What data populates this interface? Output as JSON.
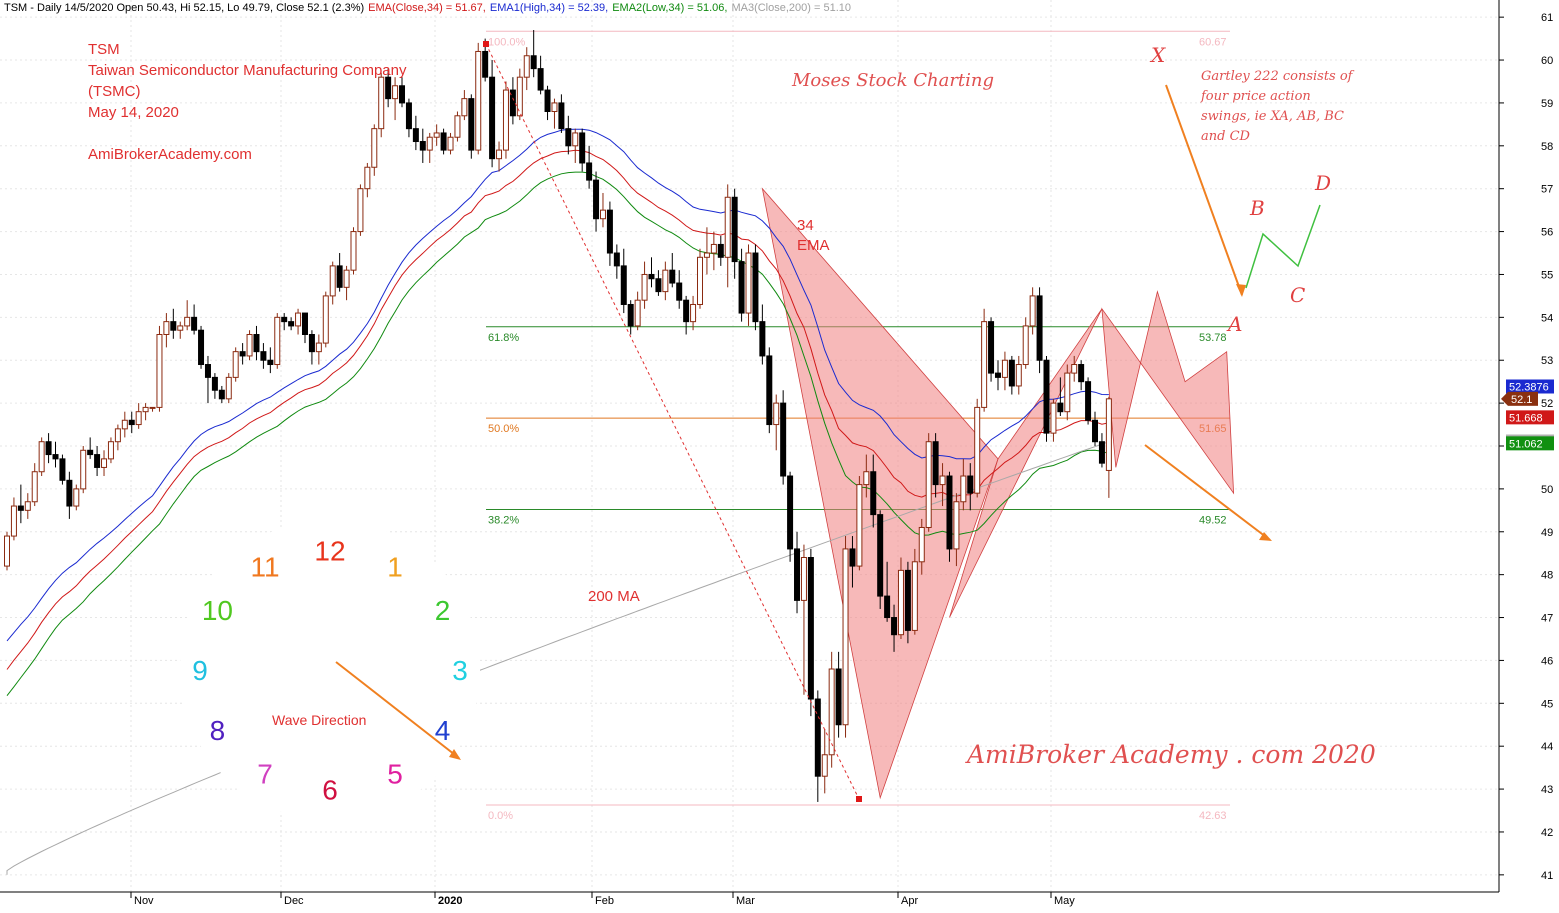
{
  "header": {
    "symbol": "TSM",
    "info": "TSM - Daily 14/5/2020 Open 50.43, Hi 52.15, Lo 49.79, Close 52.1 (2.3%)",
    "ema": "EMA(Close,34) = 51.67,",
    "ema1": "EMA1(High,34) = 52.39,",
    "ema2": "EMA2(Low,34) = 51.06,",
    "ma3": "MA3(Close,200) = 51.10"
  },
  "title_block": {
    "line1": "TSM",
    "line2": "Taiwan Semiconductor Manufacturing Company",
    "line3": "(TSMC)",
    "line4": "May 14, 2020",
    "line5": "AmiBrokerAcademy.com"
  },
  "annotations": {
    "moses": "Moses Stock Charting",
    "ema_label_1": "34",
    "ema_label_2": "EMA",
    "ma_label": "200 MA",
    "gartley_1": "Gartley 222 consists of",
    "gartley_2": "four price action",
    "gartley_3": "swings, ie XA, AB, BC",
    "gartley_4": "and CD",
    "pt_x": "X",
    "pt_a": "A",
    "pt_b": "B",
    "pt_c": "C",
    "pt_d": "D",
    "watermark": "AmiBroker Academy . com 2020"
  },
  "clock": {
    "title": "Wave Direction",
    "numbers": [
      "12",
      "1",
      "2",
      "3",
      "4",
      "5",
      "6",
      "7",
      "8",
      "9",
      "10",
      "11"
    ],
    "colors": [
      "#e8341c",
      "#f0a020",
      "#3cc830",
      "#20d0e0",
      "#2040d0",
      "#e020a0",
      "#d01040",
      "#d040c0",
      "#5020c0",
      "#20c0e0",
      "#50c820",
      "#f07820"
    ]
  },
  "fib_levels": [
    {
      "pct": "100.0%",
      "value": "60.67",
      "price": 60.67,
      "color": "#f4b8c0"
    },
    {
      "pct": "61.8%",
      "value": "53.78",
      "price": 53.78,
      "color": "#2a8a2a"
    },
    {
      "pct": "50.0%",
      "value": "51.65",
      "price": 51.65,
      "color": "#e07820"
    },
    {
      "pct": "38.2%",
      "value": "49.52",
      "price": 49.52,
      "color": "#2a8a2a"
    },
    {
      "pct": "0.0%",
      "value": "42.63",
      "price": 42.63,
      "color": "#f4b8c0"
    }
  ],
  "price_badges": [
    {
      "label": "52.3876",
      "price": 52.3876,
      "color": "#1a2ad0"
    },
    {
      "label": "52.1",
      "price": 52.1,
      "color": "#8a3010"
    },
    {
      "label": "51.668",
      "price": 51.668,
      "color": "#d01818"
    },
    {
      "label": "51.1047",
      "price": 51.1047,
      "color": "#b0b0b0"
    },
    {
      "label": "51.062",
      "price": 51.062,
      "color": "#109010"
    }
  ],
  "colors": {
    "up": "#8b2a10",
    "down": "#000000",
    "ema_high": "#1a2ad0",
    "ema_close": "#d01818",
    "ema_low": "#108a10",
    "ma200": "#a8a8a8",
    "pattern_fill": "#f08080",
    "orange_arrow": "#f08020",
    "red_text": "#e04040"
  },
  "chart_data": {
    "type": "candlestick",
    "title": "TSM - Daily 14/5/2020",
    "ylim": [
      40.6,
      61.4
    ],
    "y_ticks": [
      41,
      42,
      43,
      44,
      45,
      46,
      47,
      48,
      49,
      50,
      51,
      52,
      53,
      54,
      55,
      56,
      57,
      58,
      59,
      60,
      61
    ],
    "x_labels": [
      {
        "label": "Nov",
        "date": "2019-11-01"
      },
      {
        "label": "Dec",
        "date": "2019-12-02"
      },
      {
        "label": "2020",
        "date": "2020-01-02"
      },
      {
        "label": "Feb",
        "date": "2020-02-03"
      },
      {
        "label": "Mar",
        "date": "2020-03-02"
      },
      {
        "label": "Apr",
        "date": "2020-04-01"
      },
      {
        "label": "May",
        "date": "2020-05-01"
      }
    ],
    "last_close": 52.1,
    "ohlc": [
      [
        48.2,
        49.0,
        48.1,
        48.9
      ],
      [
        48.9,
        49.8,
        48.8,
        49.6
      ],
      [
        49.6,
        50.1,
        49.2,
        49.5
      ],
      [
        49.5,
        49.9,
        49.3,
        49.7
      ],
      [
        49.7,
        50.6,
        49.6,
        50.4
      ],
      [
        50.4,
        51.2,
        50.3,
        51.1
      ],
      [
        51.1,
        51.3,
        50.6,
        50.8
      ],
      [
        50.8,
        51.1,
        50.5,
        50.7
      ],
      [
        50.7,
        50.8,
        50.1,
        50.2
      ],
      [
        50.2,
        50.4,
        49.3,
        49.6
      ],
      [
        49.6,
        50.1,
        49.5,
        50.0
      ],
      [
        50.0,
        51.0,
        49.9,
        50.9
      ],
      [
        50.9,
        51.2,
        50.7,
        50.8
      ],
      [
        50.8,
        51.0,
        50.3,
        50.5
      ],
      [
        50.5,
        50.9,
        50.3,
        50.7
      ],
      [
        50.7,
        51.2,
        50.6,
        51.1
      ],
      [
        51.1,
        51.5,
        50.9,
        51.4
      ],
      [
        51.4,
        51.8,
        51.2,
        51.6
      ],
      [
        51.6,
        51.8,
        51.3,
        51.5
      ],
      [
        51.5,
        52.0,
        51.4,
        51.8
      ],
      [
        51.8,
        52.0,
        51.6,
        51.9
      ],
      [
        51.9,
        51.9,
        51.8,
        51.9
      ],
      [
        51.9,
        53.8,
        51.8,
        53.6
      ],
      [
        53.6,
        54.1,
        53.3,
        53.9
      ],
      [
        53.9,
        54.2,
        53.5,
        53.7
      ],
      [
        53.7,
        53.9,
        53.5,
        53.8
      ],
      [
        53.8,
        54.4,
        53.7,
        54.0
      ],
      [
        54.0,
        54.3,
        53.6,
        53.7
      ],
      [
        53.7,
        53.8,
        52.8,
        52.9
      ],
      [
        52.9,
        53.1,
        52.0,
        52.6
      ],
      [
        52.6,
        52.7,
        52.1,
        52.3
      ],
      [
        52.3,
        52.4,
        52.0,
        52.1
      ],
      [
        52.1,
        52.7,
        52.0,
        52.6
      ],
      [
        52.6,
        53.3,
        52.5,
        53.2
      ],
      [
        53.2,
        53.4,
        52.9,
        53.1
      ],
      [
        53.1,
        53.7,
        53.0,
        53.6
      ],
      [
        53.6,
        53.8,
        53.0,
        53.2
      ],
      [
        53.2,
        53.4,
        52.8,
        53.0
      ],
      [
        53.0,
        53.3,
        52.7,
        52.9
      ],
      [
        52.9,
        54.1,
        52.8,
        54.0
      ],
      [
        54.0,
        54.1,
        53.7,
        53.9
      ],
      [
        53.9,
        54.0,
        53.7,
        53.8
      ],
      [
        53.8,
        54.2,
        53.6,
        54.1
      ],
      [
        54.1,
        54.1,
        53.4,
        53.6
      ],
      [
        53.6,
        53.7,
        52.9,
        53.2
      ],
      [
        53.2,
        53.6,
        52.9,
        53.4
      ],
      [
        53.4,
        54.6,
        53.3,
        54.5
      ],
      [
        54.5,
        55.3,
        54.3,
        55.2
      ],
      [
        55.2,
        55.5,
        54.6,
        54.7
      ],
      [
        54.7,
        55.2,
        54.4,
        55.1
      ],
      [
        55.1,
        56.1,
        55.0,
        56.0
      ],
      [
        56.0,
        57.1,
        55.9,
        57.0
      ],
      [
        57.0,
        57.6,
        56.8,
        57.5
      ],
      [
        57.5,
        58.5,
        57.3,
        58.4
      ],
      [
        58.4,
        59.7,
        58.2,
        59.6
      ],
      [
        59.6,
        59.8,
        58.9,
        59.1
      ],
      [
        59.1,
        59.6,
        58.6,
        59.4
      ],
      [
        59.4,
        59.6,
        58.9,
        59.0
      ],
      [
        59.0,
        59.1,
        58.2,
        58.4
      ],
      [
        58.4,
        58.7,
        57.9,
        58.1
      ],
      [
        58.1,
        58.4,
        57.6,
        57.9
      ],
      [
        57.9,
        58.3,
        57.6,
        58.2
      ],
      [
        58.2,
        58.5,
        58.0,
        58.3
      ],
      [
        58.3,
        58.4,
        57.8,
        57.9
      ],
      [
        57.9,
        58.3,
        57.8,
        58.2
      ],
      [
        58.2,
        58.8,
        58.1,
        58.7
      ],
      [
        58.7,
        59.3,
        58.6,
        59.1
      ],
      [
        59.1,
        59.2,
        57.7,
        57.9
      ],
      [
        57.9,
        60.4,
        57.8,
        60.2
      ],
      [
        60.2,
        60.5,
        59.5,
        59.6
      ],
      [
        59.6,
        60.0,
        57.5,
        57.7
      ],
      [
        57.7,
        58.1,
        57.4,
        57.9
      ],
      [
        57.9,
        59.5,
        57.7,
        59.3
      ],
      [
        59.3,
        59.6,
        58.5,
        58.7
      ],
      [
        58.7,
        59.8,
        58.6,
        59.6
      ],
      [
        59.6,
        60.3,
        59.3,
        60.1
      ],
      [
        60.1,
        60.7,
        59.6,
        59.8
      ],
      [
        59.8,
        60.1,
        59.2,
        59.3
      ],
      [
        59.3,
        59.4,
        58.6,
        58.8
      ],
      [
        58.8,
        59.1,
        58.4,
        59.0
      ],
      [
        59.0,
        59.2,
        58.3,
        58.4
      ],
      [
        58.4,
        58.7,
        57.8,
        58.0
      ],
      [
        58.0,
        58.4,
        57.6,
        58.3
      ],
      [
        58.3,
        58.4,
        57.4,
        57.6
      ],
      [
        57.6,
        58.0,
        57.0,
        57.2
      ],
      [
        57.2,
        57.4,
        56.0,
        56.3
      ],
      [
        56.3,
        56.9,
        56.1,
        56.5
      ],
      [
        56.5,
        56.7,
        55.2,
        55.5
      ],
      [
        55.5,
        55.7,
        54.9,
        55.2
      ],
      [
        55.2,
        55.6,
        54.1,
        54.3
      ],
      [
        54.3,
        54.4,
        53.6,
        53.8
      ],
      [
        53.8,
        54.6,
        53.7,
        54.4
      ],
      [
        54.4,
        55.3,
        54.2,
        55.0
      ],
      [
        55.0,
        55.4,
        54.7,
        54.9
      ],
      [
        54.9,
        55.1,
        54.5,
        54.6
      ],
      [
        54.6,
        55.3,
        54.4,
        55.1
      ],
      [
        55.1,
        55.5,
        54.7,
        54.8
      ],
      [
        54.8,
        55.1,
        54.2,
        54.4
      ],
      [
        54.4,
        54.5,
        53.6,
        53.9
      ],
      [
        53.9,
        54.5,
        53.7,
        54.3
      ],
      [
        54.3,
        55.6,
        54.2,
        55.4
      ],
      [
        55.4,
        56.1,
        55.0,
        55.5
      ],
      [
        55.5,
        56.0,
        55.1,
        55.7
      ],
      [
        55.7,
        55.9,
        55.2,
        55.4
      ],
      [
        55.4,
        57.1,
        54.7,
        56.8
      ],
      [
        56.8,
        57.0,
        54.9,
        55.3
      ],
      [
        55.3,
        55.6,
        53.9,
        54.1
      ],
      [
        54.1,
        55.7,
        53.8,
        55.5
      ],
      [
        55.5,
        55.7,
        53.7,
        53.9
      ],
      [
        53.9,
        54.3,
        52.9,
        53.1
      ],
      [
        53.1,
        53.3,
        51.3,
        51.5
      ],
      [
        51.5,
        52.2,
        50.9,
        52.0
      ],
      [
        52.0,
        52.3,
        50.1,
        50.3
      ],
      [
        50.3,
        50.4,
        48.3,
        48.6
      ],
      [
        48.6,
        49.0,
        47.1,
        47.4
      ],
      [
        47.4,
        48.7,
        45.2,
        48.4
      ],
      [
        48.4,
        48.6,
        44.7,
        45.1
      ],
      [
        45.1,
        45.3,
        42.7,
        43.3
      ],
      [
        43.3,
        44.4,
        42.9,
        43.8
      ],
      [
        43.8,
        46.2,
        43.5,
        45.8
      ],
      [
        45.8,
        46.2,
        44.2,
        44.5
      ],
      [
        44.5,
        48.9,
        44.2,
        48.6
      ],
      [
        48.6,
        48.9,
        47.7,
        48.2
      ],
      [
        48.2,
        50.3,
        48.1,
        50.1
      ],
      [
        50.1,
        50.8,
        49.8,
        50.4
      ],
      [
        50.4,
        50.8,
        49.1,
        49.4
      ],
      [
        49.4,
        49.5,
        47.2,
        47.5
      ],
      [
        47.5,
        48.3,
        46.9,
        47.0
      ],
      [
        47.0,
        47.3,
        46.2,
        46.6
      ],
      [
        46.6,
        48.4,
        46.5,
        48.1
      ],
      [
        48.1,
        48.3,
        46.4,
        46.7
      ],
      [
        46.7,
        48.6,
        46.6,
        48.3
      ],
      [
        48.3,
        49.3,
        48.0,
        49.1
      ],
      [
        49.1,
        51.3,
        49.0,
        51.1
      ],
      [
        51.1,
        51.3,
        49.8,
        50.1
      ],
      [
        50.1,
        50.6,
        49.6,
        50.3
      ],
      [
        50.3,
        50.4,
        48.3,
        48.6
      ],
      [
        48.6,
        49.9,
        48.2,
        49.7
      ],
      [
        49.7,
        50.7,
        49.5,
        50.3
      ],
      [
        50.3,
        50.6,
        49.5,
        49.9
      ],
      [
        49.9,
        52.1,
        49.8,
        51.9
      ],
      [
        51.9,
        54.2,
        51.8,
        53.9
      ],
      [
        53.9,
        54.0,
        52.5,
        52.7
      ],
      [
        52.7,
        53.0,
        52.3,
        52.6
      ],
      [
        52.6,
        53.2,
        52.3,
        53.0
      ],
      [
        53.0,
        53.1,
        52.2,
        52.4
      ],
      [
        52.4,
        53.1,
        52.2,
        52.9
      ],
      [
        52.9,
        54.0,
        52.8,
        53.8
      ],
      [
        53.8,
        54.7,
        53.6,
        54.5
      ],
      [
        54.5,
        54.7,
        52.7,
        53.0
      ],
      [
        53.0,
        53.1,
        51.1,
        51.3
      ],
      [
        51.3,
        52.1,
        51.1,
        52.0
      ],
      [
        52.0,
        52.6,
        51.7,
        51.8
      ],
      [
        51.8,
        52.9,
        51.6,
        52.7
      ],
      [
        52.7,
        53.1,
        52.5,
        52.9
      ],
      [
        52.9,
        53.0,
        52.3,
        52.5
      ],
      [
        52.5,
        52.6,
        51.5,
        51.6
      ],
      [
        51.6,
        51.8,
        51.0,
        51.1
      ],
      [
        51.1,
        51.3,
        50.5,
        50.6
      ],
      [
        50.43,
        52.15,
        49.79,
        52.1
      ]
    ],
    "patterns": [
      {
        "pts": [
          [
            109,
            57.0
          ],
          [
            126,
            42.8
          ],
          [
            143,
            50.7
          ]
        ]
      },
      {
        "pts": [
          [
            143,
            50.7
          ],
          [
            136,
            47.0
          ],
          [
            158,
            54.2
          ]
        ]
      },
      {
        "pts": [
          [
            158,
            54.2
          ],
          [
            160,
            50.5
          ],
          [
            166,
            54.6
          ],
          [
            170,
            52.5
          ],
          [
            176,
            53.2
          ],
          [
            177,
            49.9
          ]
        ]
      }
    ]
  }
}
